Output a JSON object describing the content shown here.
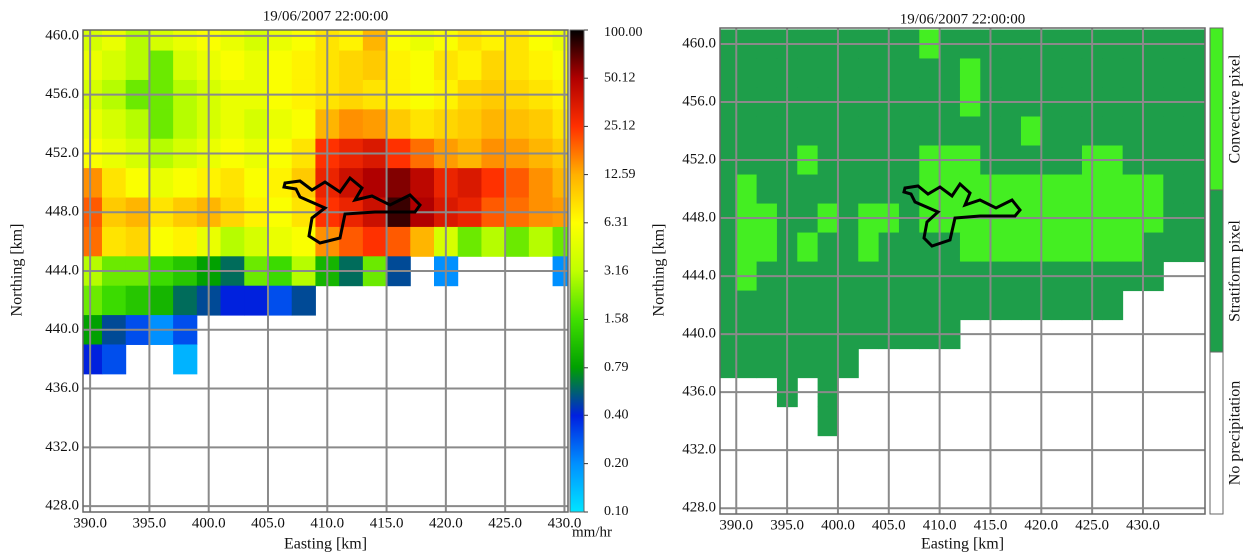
{
  "chart_data": [
    {
      "type": "heatmap",
      "title": "19/06/2007 22:00:00",
      "x_label": "Easting [km]",
      "y_label": "Northing [km]",
      "xlim": [
        389.4,
        430.3
      ],
      "ylim": [
        427.6,
        460.4
      ],
      "xticks": [
        {
          "value": 390,
          "label": "390.0"
        },
        {
          "value": 395,
          "label": "395.0"
        },
        {
          "value": 400,
          "label": "400.0"
        },
        {
          "value": 405,
          "label": "405.0"
        },
        {
          "value": 410,
          "label": "410.0"
        },
        {
          "value": 415,
          "label": "415.0"
        },
        {
          "value": 420,
          "label": "420.0"
        },
        {
          "value": 425,
          "label": "425.0"
        },
        {
          "value": 430,
          "label": "430.0"
        }
      ],
      "yticks": [
        {
          "value": 428,
          "label": "428.0"
        },
        {
          "value": 432,
          "label": "432.0"
        },
        {
          "value": 436,
          "label": "436.0"
        },
        {
          "value": 440,
          "label": "440.0"
        },
        {
          "value": 444,
          "label": "444.0"
        },
        {
          "value": 448,
          "label": "448.0"
        },
        {
          "value": 452,
          "label": "452.0"
        },
        {
          "value": 456,
          "label": "456.0"
        },
        {
          "value": 460,
          "label": "460.0"
        }
      ],
      "grid": true,
      "x": [
        390,
        392,
        394,
        396,
        398,
        400,
        402,
        404,
        406,
        408,
        410,
        412,
        414,
        416,
        418,
        420,
        422,
        424,
        426,
        428,
        430
      ],
      "y": [
        460,
        458,
        456,
        454,
        452,
        450,
        448,
        446,
        444,
        442,
        440,
        438
      ],
      "values": [
        [
          4,
          5,
          3,
          4,
          5,
          6,
          5,
          4,
          5,
          6,
          8,
          7,
          12,
          6,
          5,
          6,
          8,
          7,
          8,
          6,
          5
        ],
        [
          5,
          4,
          3,
          2,
          4,
          5,
          6,
          5,
          6,
          7,
          8,
          9,
          10,
          7,
          6,
          8,
          7,
          9,
          8,
          7,
          6
        ],
        [
          4,
          3,
          2,
          2,
          3,
          4,
          5,
          5,
          6,
          7,
          8,
          9,
          8,
          7,
          6,
          7,
          9,
          10,
          9,
          8,
          7
        ],
        [
          5,
          4,
          3,
          2,
          3,
          4,
          5,
          4,
          5,
          6,
          12,
          15,
          14,
          10,
          8,
          9,
          10,
          12,
          11,
          10,
          8
        ],
        [
          6,
          5,
          4,
          3,
          4,
          5,
          6,
          5,
          6,
          8,
          25,
          30,
          35,
          25,
          18,
          14,
          12,
          15,
          14,
          12,
          10
        ],
        [
          15,
          8,
          6,
          5,
          6,
          7,
          8,
          6,
          7,
          10,
          30,
          40,
          50,
          60,
          45,
          30,
          35,
          25,
          20,
          15,
          12
        ],
        [
          20,
          10,
          12,
          8,
          10,
          12,
          9,
          7,
          6,
          8,
          25,
          30,
          40,
          80,
          50,
          35,
          30,
          20,
          18,
          15,
          14
        ],
        [
          18,
          8,
          9,
          6,
          7,
          5,
          3,
          4,
          5,
          6,
          15,
          20,
          25,
          20,
          12,
          4,
          2,
          3,
          2,
          3,
          2
        ],
        [
          3,
          2,
          2,
          1.5,
          1.2,
          0.8,
          0.6,
          2,
          1.5,
          3,
          1,
          0.6,
          2,
          0.5,
          null,
          0.2,
          null,
          null,
          null,
          null,
          0.2
        ],
        [
          2,
          1.5,
          1.2,
          1,
          0.6,
          0.5,
          0.4,
          0.4,
          0.3,
          0.5,
          null,
          null,
          null,
          null,
          null,
          null,
          null,
          null,
          null,
          null,
          null
        ],
        [
          0.8,
          0.5,
          0.3,
          0.2,
          0.3,
          null,
          null,
          null,
          null,
          null,
          null,
          null,
          null,
          null,
          null,
          null,
          null,
          null,
          null,
          null,
          null
        ],
        [
          0.4,
          0.3,
          null,
          null,
          0.15,
          null,
          null,
          null,
          null,
          null,
          null,
          null,
          null,
          null,
          null,
          null,
          null,
          null,
          null,
          null,
          null
        ]
      ],
      "colorbar": {
        "label": "mm/hr",
        "log_scale": true,
        "clim": [
          0.1,
          100
        ],
        "colormap": [
          "#00e5ff",
          "#0090ff",
          "#0020e0",
          "#00a000",
          "#40e000",
          "#c0ff00",
          "#ffff00",
          "#ffb000",
          "#ff3000",
          "#b00000",
          "#000000"
        ],
        "ticks": [
          {
            "value": 100,
            "label": "100.00"
          },
          50.12,
          25.12,
          12.59,
          6.31,
          3.16,
          1.58,
          0.79,
          {
            "value": 0.4,
            "label": "0.40"
          },
          {
            "value": 0.2,
            "label": "0.20"
          },
          {
            "value": 0.1,
            "label": "0.10"
          }
        ]
      }
    },
    {
      "type": "classmap",
      "title": "19/06/2007 22:00:00",
      "x_label": "Easting [km]",
      "y_label": "Northing [km]",
      "xlim": [
        388.4,
        436.1
      ],
      "ylim": [
        427.6,
        461.1
      ],
      "xticks": [
        {
          "value": 390,
          "label": "390.0"
        },
        {
          "value": 395,
          "label": "395.0"
        },
        {
          "value": 400,
          "label": "400.0"
        },
        {
          "value": 405,
          "label": "405.0"
        },
        {
          "value": 410,
          "label": "410.0"
        },
        {
          "value": 415,
          "label": "415.0"
        },
        {
          "value": 420,
          "label": "420.0"
        },
        {
          "value": 425,
          "label": "425.0"
        },
        {
          "value": 430,
          "label": "430.0"
        }
      ],
      "yticks": [
        {
          "value": 428,
          "label": "428.0"
        },
        {
          "value": 432,
          "label": "432.0"
        },
        {
          "value": 436,
          "label": "436.0"
        },
        {
          "value": 440,
          "label": "440.0"
        },
        {
          "value": 444,
          "label": "444.0"
        },
        {
          "value": 448,
          "label": "448.0"
        },
        {
          "value": 452,
          "label": "452.0"
        },
        {
          "value": 456,
          "label": "456.0"
        },
        {
          "value": 460,
          "label": "460.0"
        }
      ],
      "grid": true,
      "classes": [
        {
          "name": "No precipitation",
          "color": "#ffffff"
        },
        {
          "name": "Stratiform pixel",
          "color": "#1e9e4a"
        },
        {
          "name": "Convective pixel",
          "color": "#44ee22"
        }
      ],
      "x": [
        389,
        391,
        393,
        395,
        397,
        399,
        401,
        403,
        405,
        407,
        409,
        411,
        413,
        415,
        417,
        419,
        421,
        423,
        425,
        427,
        429,
        431,
        433,
        435
      ],
      "y": [
        460,
        458,
        456,
        454,
        452,
        450,
        448,
        446,
        444,
        442,
        440,
        438,
        436,
        434
      ],
      "values": [
        [
          1,
          1,
          1,
          1,
          1,
          1,
          1,
          1,
          1,
          1,
          2,
          1,
          1,
          1,
          1,
          1,
          1,
          1,
          1,
          1,
          1,
          1,
          1,
          1
        ],
        [
          1,
          1,
          1,
          1,
          1,
          1,
          1,
          1,
          1,
          1,
          1,
          1,
          2,
          1,
          1,
          1,
          1,
          1,
          1,
          1,
          1,
          1,
          1,
          1
        ],
        [
          1,
          1,
          1,
          1,
          1,
          1,
          1,
          1,
          1,
          1,
          1,
          1,
          2,
          1,
          1,
          1,
          1,
          1,
          1,
          1,
          1,
          1,
          1,
          1
        ],
        [
          1,
          1,
          1,
          1,
          1,
          1,
          1,
          1,
          1,
          1,
          1,
          1,
          1,
          1,
          1,
          2,
          1,
          1,
          1,
          1,
          1,
          1,
          1,
          1
        ],
        [
          1,
          1,
          1,
          1,
          2,
          1,
          1,
          1,
          1,
          1,
          2,
          2,
          2,
          1,
          1,
          1,
          1,
          1,
          2,
          2,
          1,
          1,
          1,
          1
        ],
        [
          1,
          2,
          1,
          1,
          1,
          1,
          1,
          1,
          1,
          1,
          2,
          2,
          2,
          2,
          2,
          2,
          2,
          2,
          2,
          2,
          2,
          2,
          1,
          1
        ],
        [
          1,
          2,
          2,
          1,
          1,
          2,
          1,
          2,
          2,
          1,
          2,
          2,
          2,
          2,
          2,
          2,
          2,
          2,
          2,
          2,
          2,
          2,
          1,
          1
        ],
        [
          1,
          2,
          2,
          1,
          2,
          1,
          1,
          2,
          1,
          1,
          1,
          1,
          2,
          2,
          2,
          2,
          2,
          2,
          2,
          2,
          2,
          1,
          1,
          1
        ],
        [
          1,
          2,
          1,
          1,
          1,
          1,
          1,
          1,
          1,
          1,
          1,
          1,
          1,
          1,
          1,
          1,
          1,
          1,
          1,
          1,
          1,
          1,
          null,
          null
        ],
        [
          1,
          1,
          1,
          1,
          1,
          1,
          1,
          1,
          1,
          1,
          1,
          1,
          1,
          1,
          1,
          1,
          1,
          1,
          1,
          1,
          null,
          null,
          null,
          null
        ],
        [
          1,
          1,
          1,
          1,
          1,
          1,
          1,
          1,
          1,
          1,
          1,
          1,
          null,
          null,
          null,
          null,
          null,
          null,
          null,
          null,
          null,
          null,
          null,
          null
        ],
        [
          1,
          1,
          1,
          1,
          1,
          1,
          1,
          null,
          null,
          null,
          null,
          null,
          null,
          null,
          null,
          null,
          null,
          null,
          null,
          null,
          null,
          null,
          null,
          null
        ],
        [
          null,
          null,
          null,
          1,
          null,
          1,
          null,
          null,
          null,
          null,
          null,
          null,
          null,
          null,
          null,
          null,
          null,
          null,
          null,
          null,
          null,
          null,
          null,
          null
        ],
        [
          null,
          null,
          null,
          null,
          null,
          1,
          null,
          null,
          null,
          null,
          null,
          null,
          null,
          null,
          null,
          null,
          null,
          null,
          null,
          null,
          null,
          null,
          null,
          null
        ]
      ]
    }
  ]
}
